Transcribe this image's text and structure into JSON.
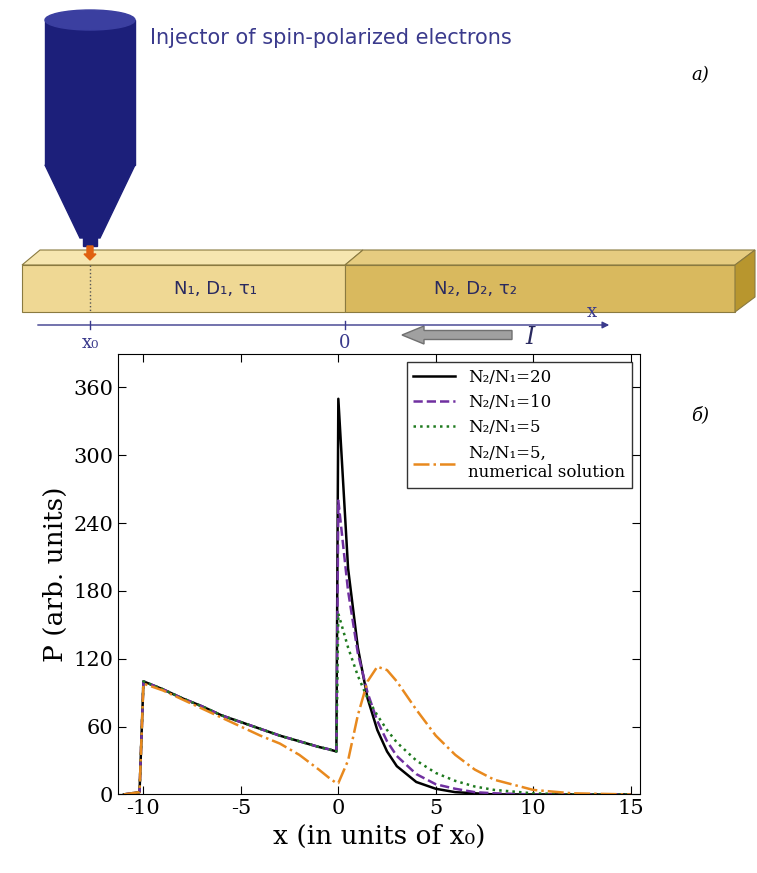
{
  "diagram": {
    "panel_label": "a)",
    "injector": {
      "label": "Injector of spin-polarized electrons"
    },
    "regions": [
      {
        "label": "N₁, D₁, τ₁"
      },
      {
        "label": "N₂, D₂, τ₂"
      }
    ],
    "axis": {
      "label": "x",
      "marks": [
        "x₀",
        "0"
      ]
    },
    "current": {
      "label": "I"
    }
  },
  "chart_data": {
    "type": "line",
    "panel_label": "б)",
    "x_label": "x (in units of x₀)",
    "y_label": "P (arb. units)",
    "x": [
      -11,
      -10.2,
      -10,
      -9,
      -8,
      -7,
      -6,
      -5,
      -4,
      -3,
      -2,
      -1,
      -0.5,
      -0.1,
      0,
      0.5,
      1,
      1.5,
      2,
      2.5,
      3,
      4,
      5,
      6,
      7,
      8,
      10,
      12,
      15
    ],
    "series": [
      {
        "name": "N₂/N₁=20",
        "color": "#000000",
        "line_style": "solid",
        "values": [
          0,
          2,
          100,
          93,
          85,
          78,
          70,
          64,
          58,
          52,
          47,
          42,
          40,
          38,
          350,
          200,
          130,
          85,
          57,
          38,
          25,
          11,
          5,
          2,
          1,
          0,
          0,
          0,
          0
        ]
      },
      {
        "name": "N₂/N₁=10",
        "color": "#7030a0",
        "line_style": "dashed",
        "values": [
          0,
          2,
          100,
          93,
          85,
          78,
          70,
          64,
          58,
          52,
          47,
          42,
          40,
          38,
          260,
          180,
          125,
          90,
          65,
          47,
          34,
          18,
          9,
          5,
          2,
          1,
          0,
          0,
          0
        ]
      },
      {
        "name": "N₂/N₁=5",
        "color": "#1f7a1f",
        "line_style": "dotted",
        "values": [
          0,
          2,
          100,
          93,
          85,
          78,
          70,
          64,
          58,
          52,
          47,
          42,
          40,
          38,
          160,
          130,
          105,
          85,
          70,
          57,
          46,
          30,
          19,
          12,
          7,
          4,
          1,
          0,
          0
        ]
      },
      {
        "name": "N₂/N₁=5,\nnumerical solution",
        "color": "#e8891e",
        "line_style": "dashdot",
        "values": [
          0,
          2,
          98,
          92,
          84,
          76,
          68,
          60,
          52,
          45,
          35,
          22,
          15,
          10,
          10,
          30,
          70,
          100,
          113,
          110,
          100,
          75,
          52,
          35,
          22,
          13,
          4,
          1,
          0
        ]
      }
    ],
    "xlim": [
      -11.3,
      15.5
    ],
    "xticks": [
      -10,
      -5,
      0,
      5,
      10,
      15
    ],
    "ylim": [
      0,
      390
    ],
    "yticks": [
      0,
      60,
      120,
      180,
      240,
      300,
      360
    ],
    "legend": "upper right",
    "grid": false
  }
}
